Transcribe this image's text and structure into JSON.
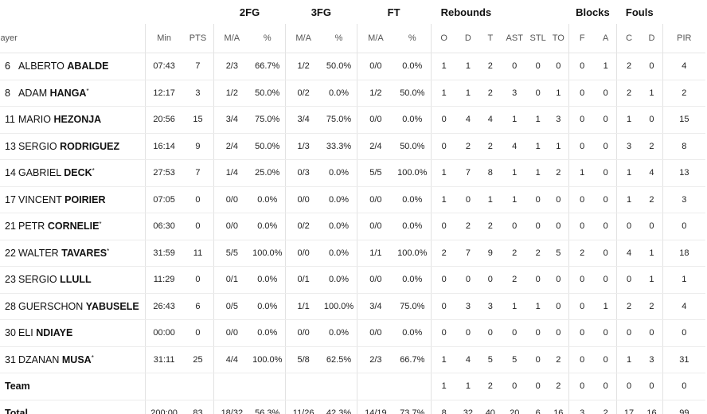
{
  "groups": {
    "two_fg": "2FG",
    "three_fg": "3FG",
    "ft": "FT",
    "rebounds": "Rebounds",
    "blocks": "Blocks",
    "fouls": "Fouls"
  },
  "columns": [
    "layer",
    "Min",
    "PTS",
    "M/A",
    "%",
    "M/A",
    "%",
    "M/A",
    "%",
    "O",
    "D",
    "T",
    "AST",
    "STL",
    "TO",
    "F",
    "A",
    "C",
    "D",
    "PIR"
  ],
  "players": [
    {
      "num": "6",
      "first": "ALBERTO",
      "last": "ABALDE",
      "star": "",
      "min": "07:43",
      "pts": "7",
      "fg2": "2/3",
      "fg2p": "66.7%",
      "fg3": "1/2",
      "fg3p": "50.0%",
      "ft": "0/0",
      "ftp": "0.0%",
      "o": "1",
      "d": "1",
      "t": "2",
      "ast": "0",
      "stl": "0",
      "to": "0",
      "bf": "0",
      "ba": "1",
      "fc": "2",
      "fd": "0",
      "pir": "4"
    },
    {
      "num": "8",
      "first": "ADAM",
      "last": "HANGA",
      "star": "*",
      "min": "12:17",
      "pts": "3",
      "fg2": "1/2",
      "fg2p": "50.0%",
      "fg3": "0/2",
      "fg3p": "0.0%",
      "ft": "1/2",
      "ftp": "50.0%",
      "o": "1",
      "d": "1",
      "t": "2",
      "ast": "3",
      "stl": "0",
      "to": "1",
      "bf": "0",
      "ba": "0",
      "fc": "2",
      "fd": "1",
      "pir": "2"
    },
    {
      "num": "11",
      "first": "MARIO",
      "last": "HEZONJA",
      "star": "",
      "min": "20:56",
      "pts": "15",
      "fg2": "3/4",
      "fg2p": "75.0%",
      "fg3": "3/4",
      "fg3p": "75.0%",
      "ft": "0/0",
      "ftp": "0.0%",
      "o": "0",
      "d": "4",
      "t": "4",
      "ast": "1",
      "stl": "1",
      "to": "3",
      "bf": "0",
      "ba": "0",
      "fc": "1",
      "fd": "0",
      "pir": "15"
    },
    {
      "num": "13",
      "first": "SERGIO",
      "last": "RODRIGUEZ",
      "star": "",
      "min": "16:14",
      "pts": "9",
      "fg2": "2/4",
      "fg2p": "50.0%",
      "fg3": "1/3",
      "fg3p": "33.3%",
      "ft": "2/4",
      "ftp": "50.0%",
      "o": "0",
      "d": "2",
      "t": "2",
      "ast": "4",
      "stl": "1",
      "to": "1",
      "bf": "0",
      "ba": "0",
      "fc": "3",
      "fd": "2",
      "pir": "8"
    },
    {
      "num": "14",
      "first": "GABRIEL",
      "last": "DECK",
      "star": "*",
      "min": "27:53",
      "pts": "7",
      "fg2": "1/4",
      "fg2p": "25.0%",
      "fg3": "0/3",
      "fg3p": "0.0%",
      "ft": "5/5",
      "ftp": "100.0%",
      "o": "1",
      "d": "7",
      "t": "8",
      "ast": "1",
      "stl": "1",
      "to": "2",
      "bf": "1",
      "ba": "0",
      "fc": "1",
      "fd": "4",
      "pir": "13"
    },
    {
      "num": "17",
      "first": "VINCENT",
      "last": "POIRIER",
      "star": "",
      "min": "07:05",
      "pts": "0",
      "fg2": "0/0",
      "fg2p": "0.0%",
      "fg3": "0/0",
      "fg3p": "0.0%",
      "ft": "0/0",
      "ftp": "0.0%",
      "o": "1",
      "d": "0",
      "t": "1",
      "ast": "1",
      "stl": "0",
      "to": "0",
      "bf": "0",
      "ba": "0",
      "fc": "1",
      "fd": "2",
      "pir": "3"
    },
    {
      "num": "21",
      "first": "PETR",
      "last": "CORNELIE",
      "star": "*",
      "min": "06:30",
      "pts": "0",
      "fg2": "0/0",
      "fg2p": "0.0%",
      "fg3": "0/2",
      "fg3p": "0.0%",
      "ft": "0/0",
      "ftp": "0.0%",
      "o": "0",
      "d": "2",
      "t": "2",
      "ast": "0",
      "stl": "0",
      "to": "0",
      "bf": "0",
      "ba": "0",
      "fc": "0",
      "fd": "0",
      "pir": "0"
    },
    {
      "num": "22",
      "first": "WALTER",
      "last": "TAVARES",
      "star": "*",
      "min": "31:59",
      "pts": "11",
      "fg2": "5/5",
      "fg2p": "100.0%",
      "fg3": "0/0",
      "fg3p": "0.0%",
      "ft": "1/1",
      "ftp": "100.0%",
      "o": "2",
      "d": "7",
      "t": "9",
      "ast": "2",
      "stl": "2",
      "to": "5",
      "bf": "2",
      "ba": "0",
      "fc": "4",
      "fd": "1",
      "pir": "18"
    },
    {
      "num": "23",
      "first": "SERGIO",
      "last": "LLULL",
      "star": "",
      "min": "11:29",
      "pts": "0",
      "fg2": "0/1",
      "fg2p": "0.0%",
      "fg3": "0/1",
      "fg3p": "0.0%",
      "ft": "0/0",
      "ftp": "0.0%",
      "o": "0",
      "d": "0",
      "t": "0",
      "ast": "2",
      "stl": "0",
      "to": "0",
      "bf": "0",
      "ba": "0",
      "fc": "0",
      "fd": "1",
      "pir": "1"
    },
    {
      "num": "28",
      "first": "GUERSCHON",
      "last": "YABUSELE",
      "star": "",
      "min": "26:43",
      "pts": "6",
      "fg2": "0/5",
      "fg2p": "0.0%",
      "fg3": "1/1",
      "fg3p": "100.0%",
      "ft": "3/4",
      "ftp": "75.0%",
      "o": "0",
      "d": "3",
      "t": "3",
      "ast": "1",
      "stl": "1",
      "to": "0",
      "bf": "0",
      "ba": "1",
      "fc": "2",
      "fd": "2",
      "pir": "4"
    },
    {
      "num": "30",
      "first": "ELI",
      "last": "NDIAYE",
      "star": "",
      "min": "00:00",
      "pts": "0",
      "fg2": "0/0",
      "fg2p": "0.0%",
      "fg3": "0/0",
      "fg3p": "0.0%",
      "ft": "0/0",
      "ftp": "0.0%",
      "o": "0",
      "d": "0",
      "t": "0",
      "ast": "0",
      "stl": "0",
      "to": "0",
      "bf": "0",
      "ba": "0",
      "fc": "0",
      "fd": "0",
      "pir": "0"
    },
    {
      "num": "31",
      "first": "DZANAN",
      "last": "MUSA",
      "star": "*",
      "min": "31:11",
      "pts": "25",
      "fg2": "4/4",
      "fg2p": "100.0%",
      "fg3": "5/8",
      "fg3p": "62.5%",
      "ft": "2/3",
      "ftp": "66.7%",
      "o": "1",
      "d": "4",
      "t": "5",
      "ast": "5",
      "stl": "0",
      "to": "2",
      "bf": "0",
      "ba": "0",
      "fc": "1",
      "fd": "3",
      "pir": "31"
    }
  ],
  "team": {
    "label": "Team",
    "min": "",
    "pts": "",
    "fg2": "",
    "fg2p": "",
    "fg3": "",
    "fg3p": "",
    "ft": "",
    "ftp": "",
    "o": "1",
    "d": "1",
    "t": "2",
    "ast": "0",
    "stl": "0",
    "to": "2",
    "bf": "0",
    "ba": "0",
    "fc": "0",
    "fd": "0",
    "pir": "0"
  },
  "total": {
    "label": "Total",
    "min": "200:00",
    "pts": "83",
    "fg2": "18/32",
    "fg2p": "56.3%",
    "fg3": "11/26",
    "fg3p": "42.3%",
    "ft": "14/19",
    "ftp": "73.7%",
    "o": "8",
    "d": "32",
    "t": "40",
    "ast": "20",
    "stl": "6",
    "to": "16",
    "bf": "3",
    "ba": "2",
    "fc": "17",
    "fd": "16",
    "pir": "99"
  }
}
